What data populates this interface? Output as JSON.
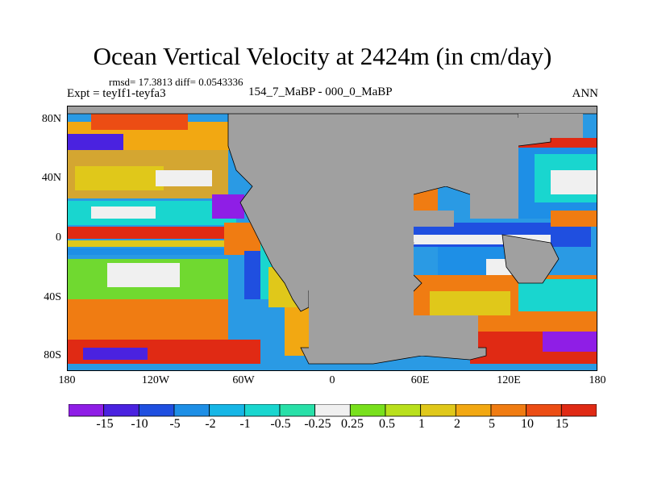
{
  "title": "Ocean Vertical Velocity at 2424m (in cm/day)",
  "stats": "rmsd= 17.3813 diff= 0.0543336",
  "expt": "Expt = teyIf1-teyfa3",
  "period": "154_7_MaBP - 000_0_MaBP",
  "season": "ANN",
  "lat_labels": [
    "80N",
    "40N",
    "0",
    "40S",
    "80S"
  ],
  "lon_labels": [
    "180",
    "120W",
    "60W",
    "0",
    "60E",
    "120E",
    "180"
  ],
  "colorbar": {
    "labels": [
      "-15",
      "-10",
      "-5",
      "-2",
      "-1",
      "-0.5",
      "-0.25",
      "0.25",
      "0.5",
      "1",
      "2",
      "5",
      "10",
      "15"
    ],
    "colors": [
      "#8f1ee6",
      "#4a22e0",
      "#1f4fe0",
      "#1e8fe6",
      "#16b6e6",
      "#19d6cf",
      "#28e0a8",
      "#f0f0f0",
      "#78e01c",
      "#b9e01c",
      "#e0c81a",
      "#f2a812",
      "#f07c12",
      "#ec4d14",
      "#e02a14"
    ]
  },
  "land_color": "#a0a0a0"
}
